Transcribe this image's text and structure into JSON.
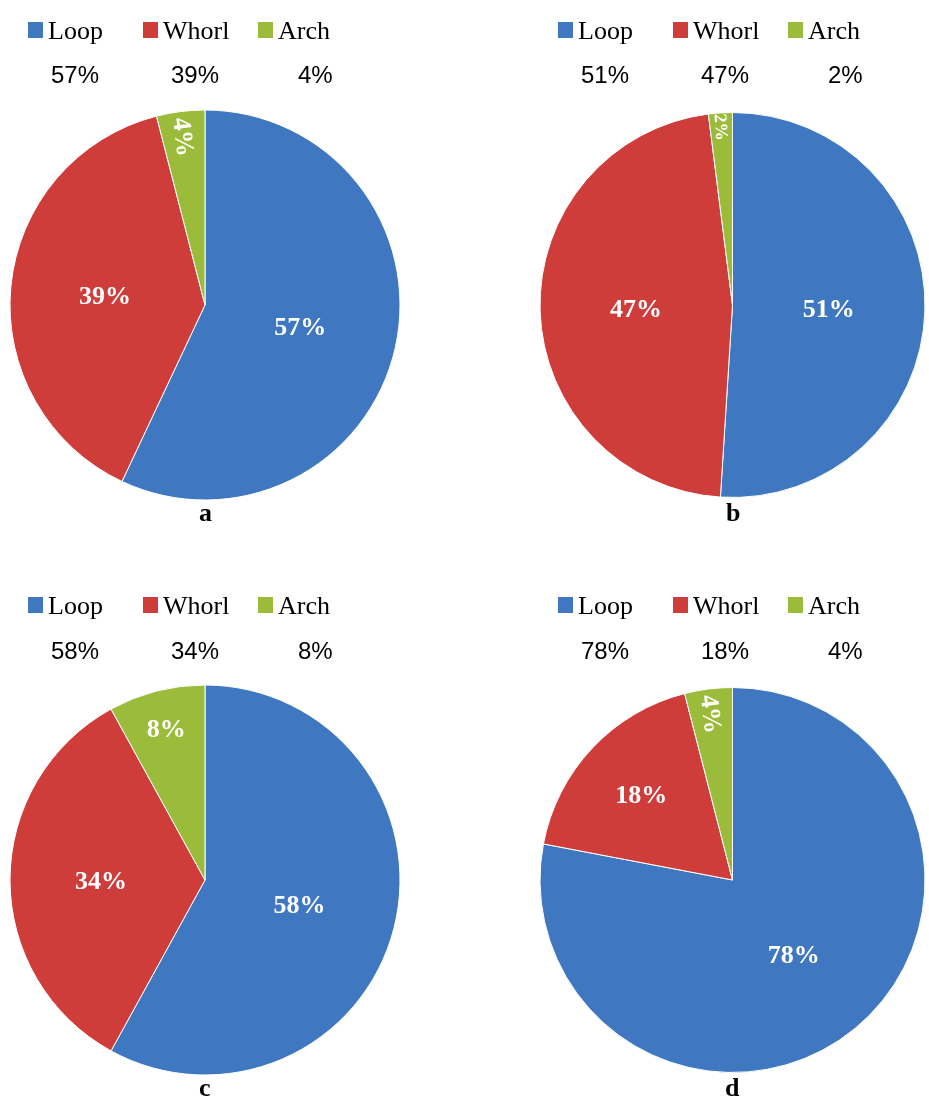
{
  "chart_data": [
    {
      "type": "pie",
      "title": "a",
      "categories": [
        "Loop",
        "Whorl",
        "Arch"
      ],
      "values": [
        57,
        39,
        4
      ],
      "value_labels": [
        "57%",
        "39%",
        "4%"
      ],
      "colors": [
        "#3f78c0",
        "#cf3d3b",
        "#9bbb3b"
      ],
      "legend": "top"
    },
    {
      "type": "pie",
      "title": "b",
      "categories": [
        "Loop",
        "Whorl",
        "Arch"
      ],
      "values": [
        51,
        47,
        2
      ],
      "value_labels": [
        "51%",
        "47%",
        "2%"
      ],
      "colors": [
        "#3f78c0",
        "#cf3d3b",
        "#9bbb3b"
      ],
      "legend": "top"
    },
    {
      "type": "pie",
      "title": "c",
      "categories": [
        "Loop",
        "Whorl",
        "Arch"
      ],
      "values": [
        58,
        34,
        8
      ],
      "value_labels": [
        "58%",
        "34%",
        "8%"
      ],
      "colors": [
        "#3f78c0",
        "#cf3d3b",
        "#9bbb3b"
      ],
      "legend": "top"
    },
    {
      "type": "pie",
      "title": "d",
      "categories": [
        "Loop",
        "Whorl",
        "Arch"
      ],
      "values": [
        78,
        18,
        4
      ],
      "value_labels": [
        "78%",
        "18%",
        "4%"
      ],
      "colors": [
        "#3f78c0",
        "#cf3d3b",
        "#9bbb3b"
      ],
      "legend": "top"
    }
  ]
}
